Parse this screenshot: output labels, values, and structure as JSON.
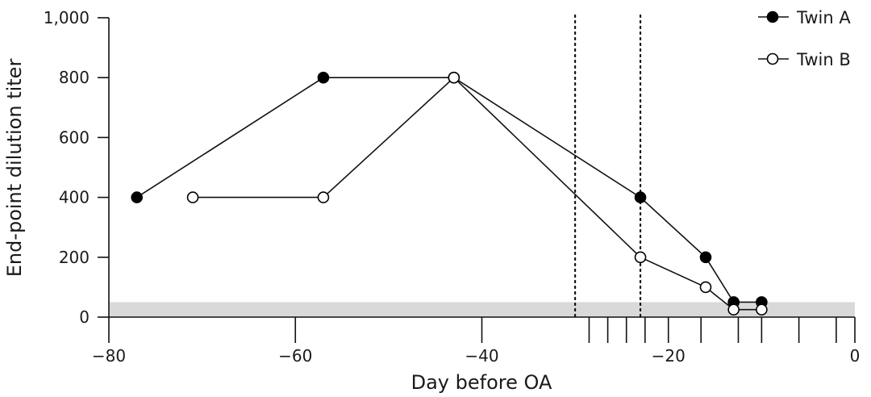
{
  "chart_data": {
    "type": "line",
    "title": "",
    "xlabel": "Day before OA",
    "ylabel": "End-point dilution titer",
    "xlim": [
      -80,
      0
    ],
    "ylim": [
      0,
      1000
    ],
    "x_ticks": [
      -80,
      -60,
      -40,
      -20,
      0
    ],
    "x_tick_labels": [
      "−80",
      "−60",
      "−40",
      "−20",
      "0"
    ],
    "y_ticks": [
      0,
      200,
      400,
      600,
      800,
      1000
    ],
    "y_tick_labels": [
      "0",
      "200",
      "400",
      "600",
      "800",
      "1,000"
    ],
    "legend_position": "top-right",
    "grid": false,
    "shaded_band": {
      "y_from": 0,
      "y_to": 50,
      "color": "#d9d9d9"
    },
    "reference_lines": [
      -30,
      -23
    ],
    "rug_days": [
      -28.5,
      -26.5,
      -24.5,
      -22.5,
      -16.5,
      -12.5,
      -10,
      -6,
      -2
    ],
    "series": [
      {
        "name": "Twin A",
        "marker": "filled",
        "x": [
          -77,
          -57,
          -43,
          -23,
          -16,
          -13,
          -10
        ],
        "y": [
          400,
          800,
          800,
          400,
          200,
          50,
          50
        ]
      },
      {
        "name": "Twin B",
        "marker": "open",
        "x": [
          -71,
          -57,
          -43,
          -23,
          -16,
          -13,
          -10
        ],
        "y": [
          400,
          400,
          800,
          200,
          100,
          25,
          25
        ]
      }
    ]
  }
}
